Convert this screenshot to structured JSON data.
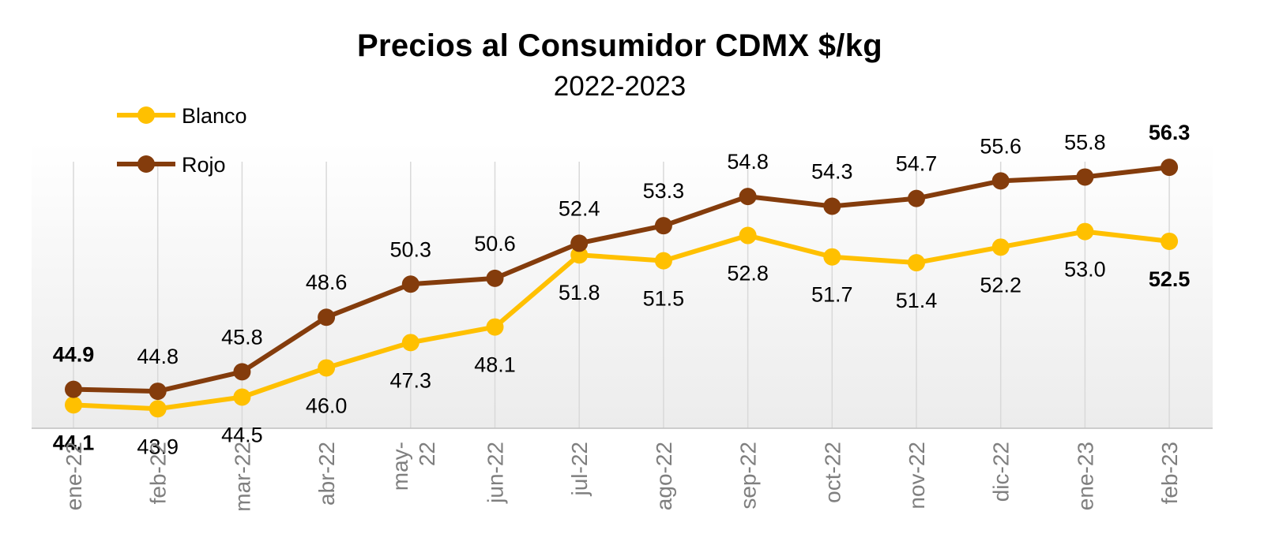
{
  "chart_data": {
    "type": "line",
    "title": "Precios al Consumidor CDMX $/kg",
    "subtitle": "2022-2023",
    "categories": [
      "ene-22",
      "feb-22",
      "mar-22",
      "abr-22",
      "may-22",
      "jun-22",
      "jul-22",
      "ago-22",
      "sep-22",
      "oct-22",
      "nov-22",
      "dic-22",
      "ene-23",
      "feb-23"
    ],
    "category_display": [
      [
        "ene-22"
      ],
      [
        "feb-22"
      ],
      [
        "mar-22"
      ],
      [
        "abr-22"
      ],
      [
        "may-",
        "22"
      ],
      [
        "jun-22"
      ],
      [
        "jul-22"
      ],
      [
        "ago-22"
      ],
      [
        "sep-22"
      ],
      [
        "oct-22"
      ],
      [
        "nov-22"
      ],
      [
        "dic-22"
      ],
      [
        "ene-23"
      ],
      [
        "feb-23"
      ]
    ],
    "series": [
      {
        "name": "Blanco",
        "color": "#FFC000",
        "values": [
          44.1,
          43.9,
          44.5,
          46.0,
          47.3,
          48.1,
          51.8,
          51.5,
          52.8,
          51.7,
          51.4,
          52.2,
          53.0,
          52.5
        ],
        "labels": [
          "44.1",
          "43.9",
          "44.5",
          "46.0",
          "47.3",
          "48.1",
          "51.8",
          "51.5",
          "52.8",
          "51.7",
          "51.4",
          "52.2",
          "53.0",
          "52.5"
        ],
        "label_position": "below"
      },
      {
        "name": "Rojo",
        "color": "#843C0C",
        "values": [
          44.9,
          44.8,
          45.8,
          48.6,
          50.3,
          50.6,
          52.4,
          53.3,
          54.8,
          54.3,
          54.7,
          55.6,
          55.8,
          56.3
        ],
        "labels": [
          "44.9",
          "44.8",
          "45.8",
          "48.6",
          "50.3",
          "50.6",
          "52.4",
          "53.3",
          "54.8",
          "54.3",
          "54.7",
          "55.6",
          "55.8",
          "56.3"
        ],
        "label_position": "above"
      }
    ],
    "bold_labels": [
      "first",
      "last"
    ],
    "ylim": [
      42.9,
      57.6
    ],
    "xlabel": "",
    "ylabel": "",
    "grid": "vertical",
    "legend_position": "top-left",
    "background": "gradient"
  }
}
